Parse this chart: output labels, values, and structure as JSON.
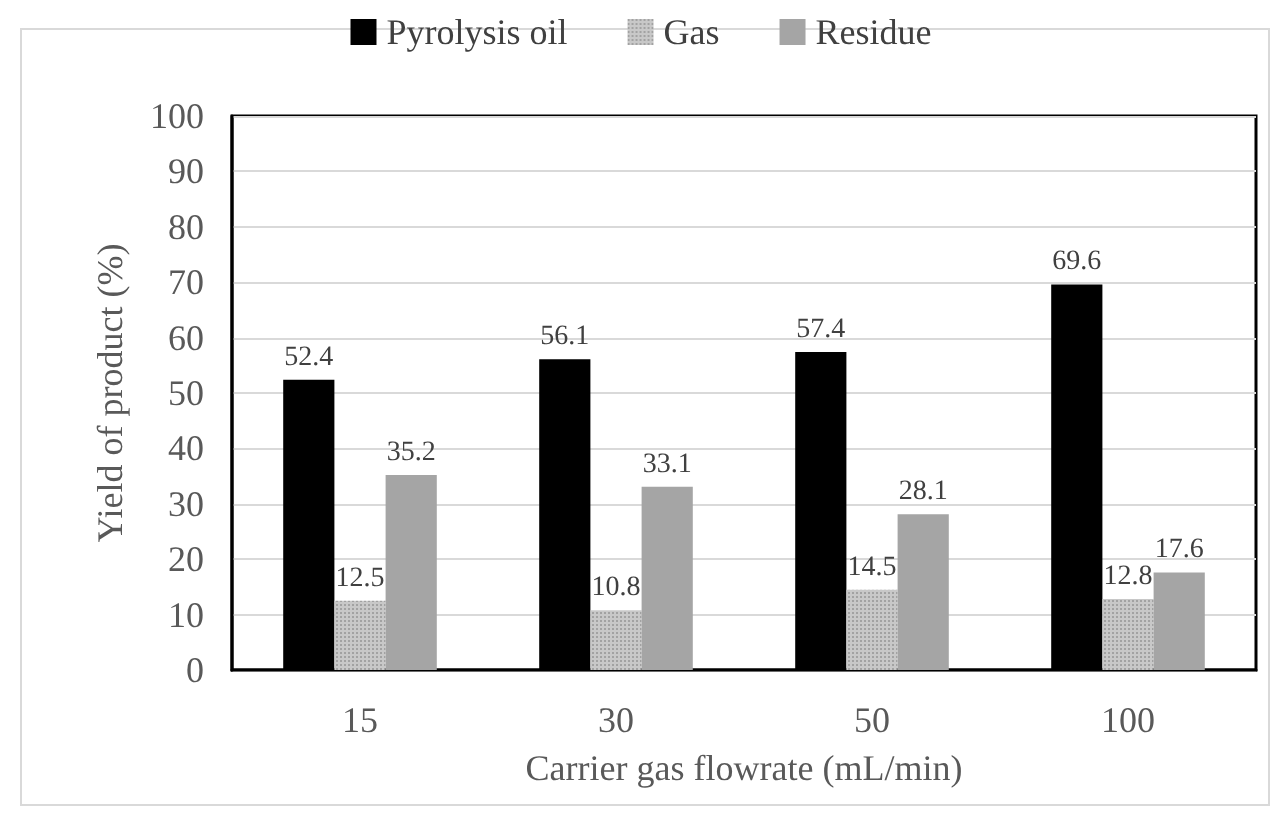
{
  "chart_data": {
    "type": "bar",
    "xlabel": "Carrier gas flowrate (mL/min)",
    "ylabel": "Yield of product (%)",
    "categories": [
      "15",
      "30",
      "50",
      "100"
    ],
    "series": [
      {
        "name": "Pyrolysis oil",
        "color": "#000000",
        "values": [
          52.4,
          56.1,
          57.4,
          69.6
        ]
      },
      {
        "name": "Gas",
        "color": "#c8c8c8",
        "values": [
          12.5,
          10.8,
          14.5,
          12.8
        ]
      },
      {
        "name": "Residue",
        "color": "#a5a5a5",
        "values": [
          35.2,
          33.1,
          28.1,
          17.6
        ]
      }
    ],
    "ylim": [
      0,
      100
    ],
    "yticks": [
      0,
      10,
      20,
      30,
      40,
      50,
      60,
      70,
      80,
      90,
      100
    ],
    "grid": "y",
    "legend": "top",
    "data_labels": true
  }
}
